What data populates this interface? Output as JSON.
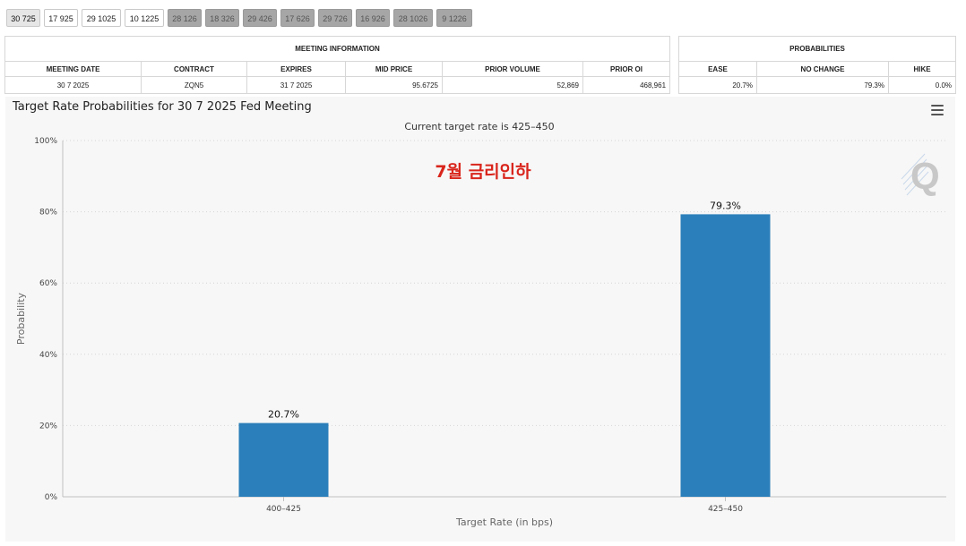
{
  "tabs": [
    {
      "label": "30 725",
      "state": "active"
    },
    {
      "label": "17 925",
      "state": "light"
    },
    {
      "label": "29 1025",
      "state": "light"
    },
    {
      "label": "10 1225",
      "state": "light"
    },
    {
      "label": "28 126",
      "state": "dark"
    },
    {
      "label": "18 326",
      "state": "dark"
    },
    {
      "label": "29 426",
      "state": "dark"
    },
    {
      "label": "17 626",
      "state": "dark"
    },
    {
      "label": "29 726",
      "state": "dark"
    },
    {
      "label": "16 926",
      "state": "dark"
    },
    {
      "label": "28 1026",
      "state": "dark"
    },
    {
      "label": "9 1226",
      "state": "dark"
    }
  ],
  "meeting_info": {
    "title": "MEETING INFORMATION",
    "headers": [
      "MEETING DATE",
      "CONTRACT",
      "EXPIRES",
      "MID PRICE",
      "PRIOR VOLUME",
      "PRIOR OI"
    ],
    "values": [
      "30 7 2025",
      "ZQN5",
      "31 7 2025",
      "95.6725",
      "52,869",
      "468,961"
    ]
  },
  "probabilities": {
    "title": "PROBABILITIES",
    "headers": [
      "EASE",
      "NO CHANGE",
      "HIKE"
    ],
    "values": [
      "20.7%",
      "79.3%",
      "0.0%"
    ]
  },
  "chart_title": "Target Rate Probabilities for 30 7 2025 Fed Meeting",
  "chart_data": {
    "type": "bar",
    "subtitle": "Current target rate is 425–450",
    "annotation": "7월 금리인하",
    "categories": [
      "400–425",
      "425–450"
    ],
    "values": [
      20.7,
      79.3
    ],
    "data_labels": [
      "20.7%",
      "79.3%"
    ],
    "xlabel": "Target Rate (in bps)",
    "ylabel": "Probability",
    "ylim": [
      0,
      100
    ],
    "yticks": [
      "0%",
      "20%",
      "40%",
      "60%",
      "80%",
      "100%"
    ],
    "grid": true,
    "bar_color": "#2b7fba",
    "annotation_color": "#d9251c"
  }
}
